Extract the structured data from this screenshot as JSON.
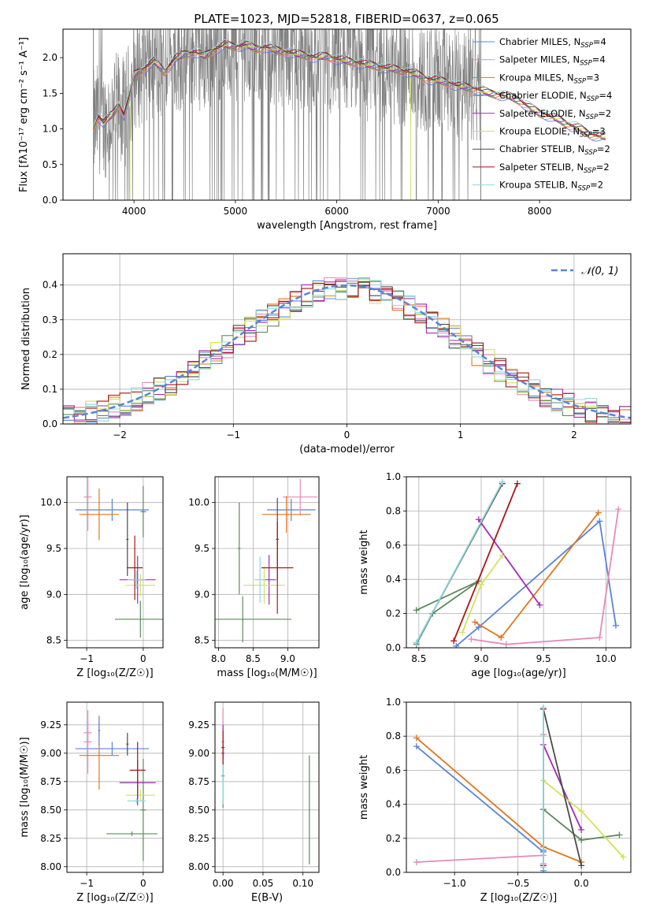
{
  "figure_title": "PLATE=1023, MJD=52818, FIBERID=0637, z=0.065",
  "colors": {
    "c0": "#5a84d6",
    "c1": "#e58ab8",
    "c2": "#e0761e",
    "c3": "#5c8a5c",
    "c4": "#a32bb4",
    "c5": "#d2e25a",
    "c6": "#4a4a4a",
    "c7": "#aa1515",
    "c8": "#8fd8e0",
    "obs": "#7f7f7f",
    "grid": "#b0b0b0"
  },
  "chart_data": [
    {
      "id": "spectrum",
      "type": "line",
      "title": "PLATE=1023, MJD=52818, FIBERID=0637, z=0.065",
      "xlabel": "wavelength [Angstrom, rest frame]",
      "ylabel": "Flux [fλ10⁻¹⁷ erg cm⁻² s⁻¹ A⁻¹]",
      "xlim": [
        3300,
        8900
      ],
      "ylim": [
        0,
        2.4
      ],
      "xticks": [
        4000,
        5000,
        6000,
        7000,
        8000
      ],
      "yticks": [
        0.0,
        0.5,
        1.0,
        1.5,
        2.0
      ],
      "grid": false,
      "legend": "top-right",
      "observed_range": [
        3600,
        7420
      ],
      "model_range": [
        3600,
        8650
      ],
      "series": [
        {
          "name": "Chabrier MILES, N_SSP=4",
          "label": "Chabrier MILES, N",
          "n_ssp": "=4",
          "color": "#5a84d6"
        },
        {
          "name": "Salpeter MILES, N_SSP=4",
          "label": "Salpeter MILES, N",
          "n_ssp": "=4",
          "color": "#e58ab8"
        },
        {
          "name": "Kroupa MILES, N_SSP=3",
          "label": "Kroupa MILES, N",
          "n_ssp": "=3",
          "color": "#e0761e"
        },
        {
          "name": "Chabrier ELODIE, N_SSP=4",
          "label": "Chabrier ELODIE, N",
          "n_ssp": "=4",
          "color": "#5c8a5c"
        },
        {
          "name": "Salpeter ELODIE, N_SSP=2",
          "label": "Salpeter ELODIE, N",
          "n_ssp": "=2",
          "color": "#a32bb4"
        },
        {
          "name": "Kroupa ELODIE, N_SSP=3",
          "label": "Kroupa ELODIE, N",
          "n_ssp": "=3",
          "color": "#d2e25a"
        },
        {
          "name": "Chabrier STELIB, N_SSP=2",
          "label": "Chabrier STELIB, N",
          "n_ssp": "=2",
          "color": "#4a4a4a"
        },
        {
          "name": "Salpeter STELIB, N_SSP=2",
          "label": "Salpeter STELIB, N",
          "n_ssp": "=2",
          "color": "#aa1515"
        },
        {
          "name": "Kroupa STELIB, N_SSP=2",
          "label": "Kroupa STELIB, N",
          "n_ssp": "=2",
          "color": "#8fd8e0"
        }
      ],
      "model_continuum": [
        [
          3600,
          1.02
        ],
        [
          3650,
          1.18
        ],
        [
          3700,
          1.08
        ],
        [
          3750,
          1.15
        ],
        [
          3800,
          1.22
        ],
        [
          3850,
          1.35
        ],
        [
          3900,
          1.2
        ],
        [
          3950,
          1.42
        ],
        [
          4000,
          1.75
        ],
        [
          4100,
          1.85
        ],
        [
          4200,
          1.95
        ],
        [
          4300,
          1.8
        ],
        [
          4400,
          1.98
        ],
        [
          4500,
          2.05
        ],
        [
          4600,
          2.08
        ],
        [
          4700,
          2.02
        ],
        [
          4800,
          2.12
        ],
        [
          4900,
          2.18
        ],
        [
          5000,
          2.15
        ],
        [
          5100,
          2.18
        ],
        [
          5200,
          2.12
        ],
        [
          5300,
          2.15
        ],
        [
          5400,
          2.1
        ],
        [
          5500,
          2.08
        ],
        [
          5600,
          2.05
        ],
        [
          5700,
          2.03
        ],
        [
          5800,
          2.0
        ],
        [
          5900,
          2.02
        ],
        [
          6000,
          1.98
        ],
        [
          6100,
          1.95
        ],
        [
          6200,
          1.93
        ],
        [
          6300,
          1.9
        ],
        [
          6400,
          1.88
        ],
        [
          6500,
          1.85
        ],
        [
          6600,
          1.83
        ],
        [
          6700,
          1.8
        ],
        [
          6800,
          1.76
        ],
        [
          6900,
          1.7
        ],
        [
          7000,
          1.68
        ],
        [
          7100,
          1.65
        ],
        [
          7200,
          1.6
        ],
        [
          7300,
          1.58
        ],
        [
          7400,
          1.55
        ],
        [
          7500,
          1.5
        ],
        [
          7600,
          1.48
        ],
        [
          7700,
          1.45
        ],
        [
          7800,
          1.4
        ],
        [
          7900,
          1.3
        ],
        [
          8000,
          1.22
        ],
        [
          8100,
          1.18
        ],
        [
          8200,
          1.12
        ],
        [
          8300,
          1.05
        ],
        [
          8400,
          1.0
        ],
        [
          8500,
          0.92
        ],
        [
          8650,
          0.88
        ]
      ]
    },
    {
      "id": "residuals",
      "type": "line",
      "xlabel": "(data-model)/error",
      "ylabel": "Normed distribution",
      "xlim": [
        -2.5,
        2.5
      ],
      "ylim": [
        0,
        0.49
      ],
      "xticks": [
        -2,
        -1,
        0,
        1,
        2
      ],
      "yticks": [
        0.0,
        0.1,
        0.2,
        0.3,
        0.4
      ],
      "grid": true,
      "legend": "top-right",
      "reference_curve": {
        "name": "𝒩(0, 1)",
        "mean": 0,
        "sigma": 1,
        "color": "#5a84d6",
        "style": "dashed"
      },
      "bin_width": 0.1
    },
    {
      "id": "age_vs_Z",
      "type": "scatter",
      "xlabel": "Z [log₁₀(Z/Z☉)]",
      "ylabel": "age  [log₁₀(age/yr)]",
      "xlim": [
        -1.35,
        0.35
      ],
      "ylim": [
        8.42,
        10.28
      ],
      "xticks": [
        -1,
        0
      ],
      "yticks": [
        8.5,
        9.0,
        9.5,
        10.0
      ],
      "grid": true,
      "points": [
        {
          "x": -0.55,
          "y": 9.92,
          "xerr": 0.65,
          "yerr": 0.12,
          "series": 0
        },
        {
          "x": -0.98,
          "y": 10.06,
          "xerr": 0.07,
          "yerr": 0.37,
          "series": 1
        },
        {
          "x": -0.78,
          "y": 9.87,
          "xerr": 0.35,
          "yerr": 0.28,
          "series": 2
        },
        {
          "x": 0.0,
          "y": 9.9,
          "xerr": 0.05,
          "yerr": 0.28,
          "series": 3
        },
        {
          "x": -0.05,
          "y": 8.73,
          "xerr": 0.45,
          "yerr": 0.2,
          "series": 3
        },
        {
          "x": -0.1,
          "y": 9.16,
          "xerr": 0.32,
          "yerr": 0.26,
          "series": 4
        },
        {
          "x": -0.05,
          "y": 9.1,
          "xerr": 0.26,
          "yerr": 0.12,
          "series": 5
        },
        {
          "x": -0.28,
          "y": 9.6,
          "xerr": 0.02,
          "yerr": 0.4,
          "series": 6
        },
        {
          "x": -0.15,
          "y": 9.29,
          "xerr": 0.14,
          "yerr": 0.35,
          "series": 7
        },
        {
          "x": -0.12,
          "y": 9.16,
          "xerr": 0.16,
          "yerr": 0.1,
          "series": 8
        }
      ]
    },
    {
      "id": "age_vs_mass",
      "type": "scatter",
      "xlabel": "mass [log₁₀(M/M☉)]",
      "ylabel": "",
      "xlim": [
        7.95,
        9.45
      ],
      "ylim": [
        8.42,
        10.28
      ],
      "xticks": [
        8.0,
        8.5,
        9.0
      ],
      "yticks": [
        8.5,
        9.0,
        9.5,
        10.0
      ],
      "grid": true,
      "points": [
        {
          "x": 9.05,
          "y": 9.92,
          "xerr": 0.35,
          "yerr": 0.12,
          "series": 0
        },
        {
          "x": 9.18,
          "y": 10.06,
          "xerr": 0.25,
          "yerr": 0.2,
          "series": 1
        },
        {
          "x": 8.98,
          "y": 9.87,
          "xerr": 0.35,
          "yerr": 0.2,
          "series": 2
        },
        {
          "x": 8.3,
          "y": 9.5,
          "xerr": 0.02,
          "yerr": 0.5,
          "series": 3
        },
        {
          "x": 8.35,
          "y": 8.73,
          "xerr": 0.7,
          "yerr": 0.25,
          "series": 3
        },
        {
          "x": 8.73,
          "y": 9.16,
          "xerr": 0.1,
          "yerr": 0.27,
          "series": 4
        },
        {
          "x": 8.66,
          "y": 9.1,
          "xerr": 0.3,
          "yerr": 0.2,
          "series": 5
        },
        {
          "x": 8.85,
          "y": 9.6,
          "xerr": 0.02,
          "yerr": 0.45,
          "series": 6
        },
        {
          "x": 8.85,
          "y": 9.29,
          "xerr": 0.23,
          "yerr": 0.5,
          "series": 7
        },
        {
          "x": 8.6,
          "y": 9.16,
          "xerr": 0.08,
          "yerr": 0.25,
          "series": 8
        }
      ]
    },
    {
      "id": "weight_vs_age",
      "type": "line",
      "xlabel": "age  [log₁₀(age/yr)]",
      "ylabel": "mass weight",
      "xlim": [
        8.4,
        10.2
      ],
      "ylim": [
        0,
        1
      ],
      "xticks": [
        8.5,
        9.0,
        9.5,
        10.0
      ],
      "yticks": [
        0.0,
        0.2,
        0.4,
        0.6,
        0.8,
        1.0
      ],
      "grid": true,
      "series": [
        {
          "series": 0,
          "x": [
            8.8,
            8.98,
            9.95,
            10.08
          ],
          "y": [
            0.01,
            0.12,
            0.74,
            0.13
          ]
        },
        {
          "series": 1,
          "x": [
            8.92,
            9.2,
            9.95,
            10.1
          ],
          "y": [
            0.05,
            0.02,
            0.06,
            0.81
          ]
        },
        {
          "series": 2,
          "x": [
            8.95,
            9.16,
            9.94
          ],
          "y": [
            0.15,
            0.06,
            0.79
          ]
        },
        {
          "series": 3,
          "x": [
            8.48,
            8.61,
            8.98,
            8.48
          ],
          "y": [
            0.02,
            0.2,
            0.39,
            0.22
          ]
        },
        {
          "series": 4,
          "x": [
            8.98,
            9.47
          ],
          "y": [
            0.75,
            0.25
          ]
        },
        {
          "series": 5,
          "x": [
            8.85,
            9.0,
            9.17
          ],
          "y": [
            0.09,
            0.37,
            0.54
          ]
        },
        {
          "series": 6,
          "x": [
            8.48,
            9.17
          ],
          "y": [
            0.03,
            0.96
          ]
        },
        {
          "series": 7,
          "x": [
            8.78,
            9.29
          ],
          "y": [
            0.04,
            0.96
          ]
        },
        {
          "series": 8,
          "x": [
            8.48,
            9.17
          ],
          "y": [
            0.03,
            0.97
          ]
        }
      ]
    },
    {
      "id": "mass_vs_Z",
      "type": "scatter",
      "xlabel": "Z [log₁₀(Z/Z☉)]",
      "ylabel": "mass [log₁₀(M/M☉)]",
      "xlim": [
        -1.35,
        0.35
      ],
      "ylim": [
        7.95,
        9.45
      ],
      "xticks": [
        -1,
        0
      ],
      "yticks": [
        8.0,
        8.25,
        8.5,
        8.75,
        9.0,
        9.25
      ],
      "grid": true,
      "points": [
        {
          "x": -0.55,
          "y": 9.04,
          "xerr": 0.65,
          "yerr": 0.06,
          "series": 0
        },
        {
          "x": -0.98,
          "y": 9.1,
          "xerr": 0.07,
          "yerr": 0.28,
          "series": 1
        },
        {
          "x": -0.98,
          "y": 9.18,
          "xerr": 0.07,
          "yerr": 0.1,
          "series": 1
        },
        {
          "x": -0.78,
          "y": 8.98,
          "xerr": 0.35,
          "yerr": 0.3,
          "series": 2
        },
        {
          "x": -0.78,
          "y": 9.2,
          "xerr": 0.02,
          "yerr": 0.13,
          "series": 0
        },
        {
          "x": 0.0,
          "y": 8.5,
          "xerr": 0.05,
          "yerr": 0.45,
          "series": 3
        },
        {
          "x": -0.2,
          "y": 8.29,
          "xerr": 0.45,
          "yerr": 0.02,
          "series": 3
        },
        {
          "x": -0.1,
          "y": 8.74,
          "xerr": 0.32,
          "yerr": 0.2,
          "series": 4
        },
        {
          "x": -0.05,
          "y": 8.63,
          "xerr": 0.26,
          "yerr": 0.05,
          "series": 5
        },
        {
          "x": -0.28,
          "y": 9.08,
          "xerr": 0.02,
          "yerr": 0.1,
          "series": 6
        },
        {
          "x": -0.1,
          "y": 8.85,
          "xerr": 0.14,
          "yerr": 0.25,
          "series": 7
        },
        {
          "x": -0.12,
          "y": 8.58,
          "xerr": 0.16,
          "yerr": 0.02,
          "series": 8
        }
      ]
    },
    {
      "id": "mass_vs_EBV",
      "type": "scatter",
      "xlabel": "E(B-V)",
      "ylabel": "",
      "xlim": [
        -0.01,
        0.12
      ],
      "ylim": [
        7.95,
        9.45
      ],
      "xticks": [
        0.0,
        0.05,
        0.1
      ],
      "yticks": [
        8.0,
        8.25,
        8.5,
        8.75,
        9.0,
        9.25
      ],
      "grid": true,
      "points": [
        {
          "x": 0.0,
          "y": 9.1,
          "xerr": 0.002,
          "yerr": 0.3,
          "series": 1
        },
        {
          "x": 0.0,
          "y": 9.0,
          "xerr": 0.002,
          "yerr": 0.25,
          "series": 4
        },
        {
          "x": 0.0,
          "y": 8.8,
          "xerr": 0.002,
          "yerr": 0.28,
          "series": 3
        },
        {
          "x": 0.0,
          "y": 8.75,
          "xerr": 0.002,
          "yerr": 0.2,
          "series": 8
        },
        {
          "x": 0.0,
          "y": 9.05,
          "xerr": 0.002,
          "yerr": 0.15,
          "series": 7
        },
        {
          "x": 0.108,
          "y": 8.5,
          "xerr": 0.0,
          "yerr": 0.48,
          "series": 3
        }
      ]
    },
    {
      "id": "weight_vs_Z",
      "type": "line",
      "xlabel": "Z [log₁₀(Z/Z☉)]",
      "ylabel": "mass weight",
      "xlim": [
        -1.38,
        0.39
      ],
      "ylim": [
        0,
        1
      ],
      "xticks": [
        -1.0,
        -0.5,
        0.0
      ],
      "yticks": [
        0.0,
        0.2,
        0.4,
        0.6,
        0.8,
        1.0
      ],
      "grid": true,
      "series": [
        {
          "series": 0,
          "x": [
            -1.3,
            -0.3,
            -0.3,
            -0.3
          ],
          "y": [
            0.74,
            0.12,
            0.01,
            0.13
          ]
        },
        {
          "series": 1,
          "x": [
            -1.3,
            -0.3,
            -0.3,
            -0.3
          ],
          "y": [
            0.06,
            0.1,
            0.05,
            0.81
          ]
        },
        {
          "series": 2,
          "x": [
            -1.3,
            -0.3,
            0.0
          ],
          "y": [
            0.79,
            0.15,
            0.06
          ]
        },
        {
          "series": 3,
          "x": [
            -0.3,
            0.0,
            0.3
          ],
          "y": [
            0.37,
            0.19,
            0.22
          ]
        },
        {
          "series": 4,
          "x": [
            -0.3,
            0.0
          ],
          "y": [
            0.75,
            0.25
          ]
        },
        {
          "series": 5,
          "x": [
            -0.3,
            0.0,
            0.33
          ],
          "y": [
            0.54,
            0.36,
            0.09
          ]
        },
        {
          "series": 6,
          "x": [
            -0.3,
            0.0
          ],
          "y": [
            0.96,
            0.04
          ]
        },
        {
          "series": 7,
          "x": [
            -0.3,
            -0.3
          ],
          "y": [
            0.96,
            0.04
          ]
        },
        {
          "series": 8,
          "x": [
            -0.3,
            -0.3
          ],
          "y": [
            0.97,
            0.03
          ]
        }
      ]
    }
  ]
}
